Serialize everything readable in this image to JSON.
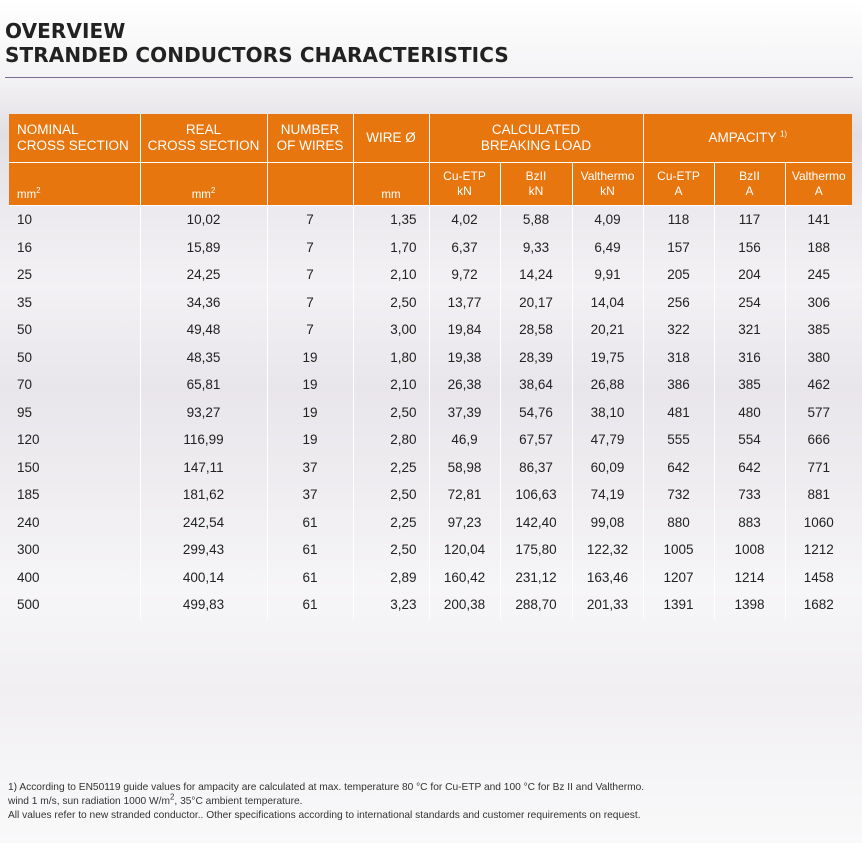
{
  "title": {
    "line1": "OVERVIEW",
    "line2": "STRANDED CONDUCTORS CHARACTERISTICS"
  },
  "table": {
    "headers": {
      "nominal_line1": "NOMINAL",
      "nominal_line2": "CROSS SECTION",
      "real_line1": "REAL",
      "real_line2": "CROSS SECTION",
      "wires_line1": "NUMBER",
      "wires_line2": "OF WIRES",
      "wire_dia": "WIRE Ø",
      "load_line1": "CALCULATED",
      "load_line2": "BREAKING LOAD",
      "ampacity": "AMPACITY",
      "ampacity_note": "1)"
    },
    "units": {
      "nominal": "mm",
      "nominal_sup": "2",
      "real": "mm",
      "real_sup": "2",
      "wire": "mm",
      "cu_load_name": "Cu-ETP",
      "cu_load_unit": "kN",
      "bz_load_name": "BzII",
      "bz_load_unit": "kN",
      "val_load_name": "Valthermo",
      "val_load_unit": "kN",
      "cu_amp_name": "Cu-ETP",
      "cu_amp_unit": "A",
      "bz_amp_name": "BzII",
      "bz_amp_unit": "A",
      "val_amp_name": "Valthermo",
      "val_amp_unit": "A"
    },
    "rows": [
      [
        "10",
        "10,02",
        "7",
        "1,35",
        "4,02",
        "5,88",
        "4,09",
        "118",
        "117",
        "141"
      ],
      [
        "16",
        "15,89",
        "7",
        "1,70",
        "6,37",
        "9,33",
        "6,49",
        "157",
        "156",
        "188"
      ],
      [
        "25",
        "24,25",
        "7",
        "2,10",
        "9,72",
        "14,24",
        "9,91",
        "205",
        "204",
        "245"
      ],
      [
        "35",
        "34,36",
        "7",
        "2,50",
        "13,77",
        "20,17",
        "14,04",
        "256",
        "254",
        "306"
      ],
      [
        "50",
        "49,48",
        "7",
        "3,00",
        "19,84",
        "28,58",
        "20,21",
        "322",
        "321",
        "385"
      ],
      [
        "50",
        "48,35",
        "19",
        "1,80",
        "19,38",
        "28,39",
        "19,75",
        "318",
        "316",
        "380"
      ],
      [
        "70",
        "65,81",
        "19",
        "2,10",
        "26,38",
        "38,64",
        "26,88",
        "386",
        "385",
        "462"
      ],
      [
        "95",
        "93,27",
        "19",
        "2,50",
        "37,39",
        "54,76",
        "38,10",
        "481",
        "480",
        "577"
      ],
      [
        "120",
        "116,99",
        "19",
        "2,80",
        "46,9",
        "67,57",
        "47,79",
        "555",
        "554",
        "666"
      ],
      [
        "150",
        "147,11",
        "37",
        "2,25",
        "58,98",
        "86,37",
        "60,09",
        "642",
        "642",
        "771"
      ],
      [
        "185",
        "181,62",
        "37",
        "2,50",
        "72,81",
        "106,63",
        "74,19",
        "732",
        "733",
        "881"
      ],
      [
        "240",
        "242,54",
        "61",
        "2,25",
        "97,23",
        "142,40",
        "99,08",
        "880",
        "883",
        "1060"
      ],
      [
        "300",
        "299,43",
        "61",
        "2,50",
        "120,04",
        "175,80",
        "122,32",
        "1005",
        "1008",
        "1212"
      ],
      [
        "400",
        "400,14",
        "61",
        "2,89",
        "160,42",
        "231,12",
        "163,46",
        "1207",
        "1214",
        "1458"
      ],
      [
        "500",
        "499,83",
        "61",
        "3,23",
        "200,38",
        "288,70",
        "201,33",
        "1391",
        "1398",
        "1682"
      ]
    ]
  },
  "footnote": {
    "line1": "1) According to EN50119 guide values for ampacity are calculated at max. temperature 80 °C for Cu-ETP and 100 °C for Bz II and Valthermo.",
    "line2_pre": "wind 1 m/s, sun radiation 1000 W/m",
    "line2_sup": "2",
    "line2_post": ", 35°C ambient temperature.",
    "line3": "All values refer to new stranded conductor.. Other specifications according to international standards and customer requirements on request."
  },
  "colors": {
    "header_orange": "#e8760f",
    "rule_purple": "#7b6a91"
  }
}
